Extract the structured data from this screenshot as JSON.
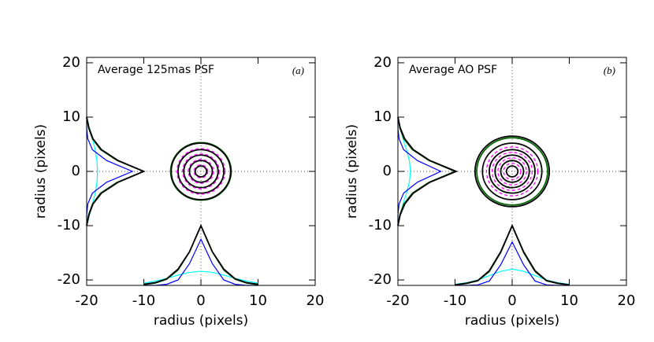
{
  "chart_data": [
    {
      "type": "psf",
      "title": "Average 125mas PSF",
      "tag": "(a)",
      "xlabel": "radius (pixels)",
      "ylabel": "radius (pixels)",
      "xlim": [
        -20,
        20
      ],
      "ylim": [
        -21,
        21
      ],
      "xticks": [
        -20,
        -10,
        0,
        10,
        20
      ],
      "yticks": [
        -20,
        -10,
        0,
        10,
        20
      ],
      "hline": 0,
      "vline": 0,
      "bottom_profile": {
        "x": [
          -10,
          -8,
          -6,
          -4,
          -2,
          0,
          2,
          4,
          6,
          8,
          10
        ],
        "series": [
          {
            "color": "#00ffff",
            "values": [
              -20.6,
              -20.2,
              -19.7,
              -19.1,
              -18.6,
              -18.4,
              -18.6,
              -19.1,
              -19.7,
              -20.2,
              -20.6
            ]
          },
          {
            "color": "#0000ff",
            "values": [
              -21,
              -21,
              -20.8,
              -20,
              -17,
              -12.5,
              -17,
              -20,
              -20.8,
              -21,
              -21
            ]
          },
          {
            "color": "#006400",
            "values": [
              -20.9,
              -20.6,
              -19.9,
              -18.2,
              -14.9,
              -10.1,
              -14.9,
              -18.2,
              -19.9,
              -20.6,
              -20.9
            ]
          },
          {
            "color": "#000000",
            "values": [
              -20.8,
              -20.5,
              -19.8,
              -18,
              -14.8,
              -10,
              -14.8,
              -18,
              -19.8,
              -20.5,
              -20.8
            ]
          }
        ]
      },
      "left_profile": {
        "y": [
          -10,
          -8,
          -6,
          -4,
          -2,
          0,
          2,
          4,
          6,
          8,
          10
        ],
        "series": [
          {
            "color": "#00ffff",
            "values": [
              -20,
              -19.5,
              -19,
              -18.5,
              -18.2,
              -18.1,
              -18.2,
              -18.5,
              -19,
              -19.5,
              -20
            ]
          },
          {
            "color": "#0000ff",
            "values": [
              -20,
              -20,
              -19.8,
              -19,
              -16.5,
              -12,
              -16.5,
              -19,
              -19.8,
              -20,
              -20
            ]
          },
          {
            "color": "#006400",
            "values": [
              -20,
              -19.7,
              -19,
              -17.6,
              -14.7,
              -10.1,
              -14.7,
              -17.6,
              -19,
              -19.7,
              -20
            ]
          },
          {
            "color": "#000000",
            "values": [
              -20,
              -19.6,
              -18.9,
              -17.4,
              -14.5,
              -10,
              -14.5,
              -17.4,
              -18.9,
              -19.6,
              -20
            ]
          }
        ]
      },
      "contours": [
        {
          "color": "#006400",
          "dashed": false,
          "radii": [
            5.3
          ]
        },
        {
          "color": "#000000",
          "dashed": false,
          "radii": [
            1,
            2,
            3,
            4,
            5.2
          ]
        },
        {
          "color": "#ff00ff",
          "dashed": true,
          "radii": [
            1.2,
            2.2,
            3.2,
            4.2
          ]
        }
      ]
    },
    {
      "type": "psf",
      "title": "Average AO PSF",
      "tag": "(b)",
      "xlabel": "radius (pixels)",
      "ylabel": "radius (pixels)",
      "xlim": [
        -20,
        20
      ],
      "ylim": [
        -21,
        21
      ],
      "xticks": [
        -20,
        -10,
        0,
        10,
        20
      ],
      "yticks": [
        -20,
        -10,
        0,
        10,
        20
      ],
      "hline": 0,
      "vline": 0,
      "bottom_profile": {
        "x": [
          -10,
          -8,
          -6,
          -4,
          -2,
          0,
          2,
          4,
          6,
          8,
          10
        ],
        "series": [
          {
            "color": "#00ffff",
            "values": [
              -20.8,
              -20.5,
              -20,
              -19.2,
              -18.4,
              -18,
              -18.4,
              -19.2,
              -20,
              -20.5,
              -20.8
            ]
          },
          {
            "color": "#0000ff",
            "values": [
              -21,
              -21,
              -20.9,
              -20.2,
              -17.2,
              -13,
              -17.2,
              -20.2,
              -20.9,
              -21,
              -21
            ]
          },
          {
            "color": "#006400",
            "values": [
              -20.9,
              -20.7,
              -20.2,
              -18.5,
              -15,
              -10.1,
              -15,
              -18.5,
              -20.2,
              -20.7,
              -20.9
            ]
          },
          {
            "color": "#000000",
            "values": [
              -20.9,
              -20.6,
              -20.1,
              -18.3,
              -14.8,
              -10,
              -14.8,
              -18.3,
              -20.1,
              -20.6,
              -20.9
            ]
          }
        ]
      },
      "left_profile": {
        "y": [
          -10,
          -8,
          -6,
          -4,
          -2,
          0,
          2,
          4,
          6,
          8,
          10
        ],
        "series": [
          {
            "color": "#00ffff",
            "values": [
              -20,
              -19.6,
              -19.1,
              -18.5,
              -18,
              -17.8,
              -18,
              -18.5,
              -19.1,
              -19.6,
              -20
            ]
          },
          {
            "color": "#0000ff",
            "values": [
              -20,
              -20,
              -19.8,
              -19,
              -16.6,
              -12.5,
              -16.6,
              -19,
              -19.8,
              -20,
              -20
            ]
          },
          {
            "color": "#006400",
            "values": [
              -20,
              -19.7,
              -19,
              -17.5,
              -14.6,
              -10.1,
              -14.6,
              -17.5,
              -19,
              -19.7,
              -20
            ]
          },
          {
            "color": "#000000",
            "values": [
              -20,
              -19.6,
              -18.8,
              -17.3,
              -14.4,
              -9.8,
              -14.4,
              -17.3,
              -18.8,
              -19.6,
              -20
            ]
          }
        ]
      },
      "contours": [
        {
          "color": "#006400",
          "dashed": false,
          "radii": [
            6.2
          ]
        },
        {
          "color": "#000000",
          "dashed": false,
          "radii": [
            1,
            2,
            3,
            4,
            5.2,
            6.5
          ]
        },
        {
          "color": "#ff00ff",
          "dashed": true,
          "radii": [
            1.5,
            2.5,
            3.5,
            4.5
          ]
        }
      ]
    }
  ]
}
